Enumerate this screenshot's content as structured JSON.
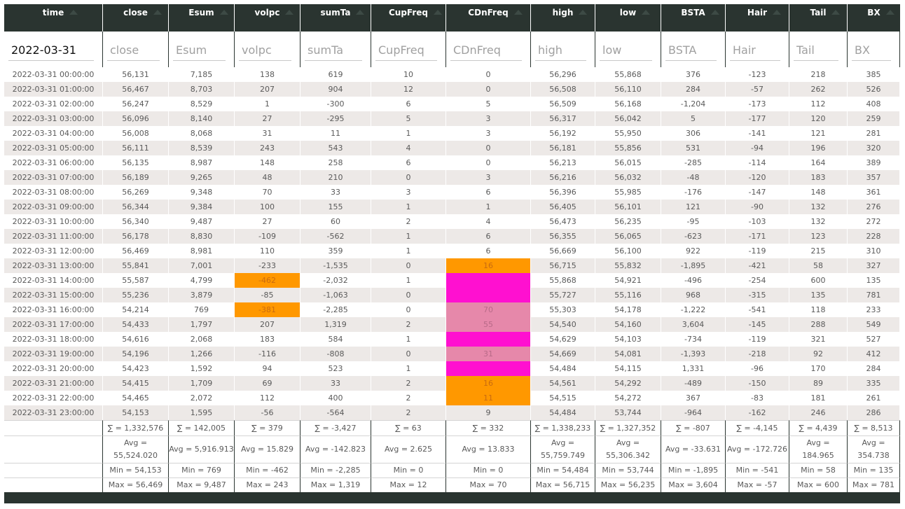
{
  "columns": [
    "time",
    "close",
    "Esum",
    "volpc",
    "sumTa",
    "CupFreq",
    "CDnFreq",
    "high",
    "low",
    "BSTA",
    "Hair",
    "Tail",
    "BX"
  ],
  "filters": {
    "time_value": "2022-03-31",
    "placeholders": [
      "close",
      "Esum",
      "volpc",
      "sumTa",
      "CupFreq",
      "CDnFreq",
      "high",
      "low",
      "BSTA",
      "Hair",
      "Tail",
      "BX"
    ]
  },
  "rows": [
    [
      "2022-03-31 00:00:00",
      "56,131",
      "7,185",
      "138",
      "619",
      "10",
      "0",
      "56,296",
      "55,868",
      "376",
      "-123",
      "218",
      "385"
    ],
    [
      "2022-03-31 01:00:00",
      "56,467",
      "8,703",
      "207",
      "904",
      "12",
      "0",
      "56,508",
      "56,110",
      "284",
      "-57",
      "262",
      "526"
    ],
    [
      "2022-03-31 02:00:00",
      "56,247",
      "8,529",
      "1",
      "-300",
      "6",
      "5",
      "56,509",
      "56,168",
      "-1,204",
      "-173",
      "112",
      "408"
    ],
    [
      "2022-03-31 03:00:00",
      "56,096",
      "8,140",
      "27",
      "-295",
      "5",
      "3",
      "56,317",
      "56,042",
      "5",
      "-177",
      "120",
      "259"
    ],
    [
      "2022-03-31 04:00:00",
      "56,008",
      "8,068",
      "31",
      "11",
      "1",
      "3",
      "56,192",
      "55,950",
      "306",
      "-141",
      "121",
      "281"
    ],
    [
      "2022-03-31 05:00:00",
      "56,111",
      "8,539",
      "243",
      "543",
      "4",
      "0",
      "56,181",
      "55,856",
      "531",
      "-94",
      "196",
      "320"
    ],
    [
      "2022-03-31 06:00:00",
      "56,135",
      "8,987",
      "148",
      "258",
      "6",
      "0",
      "56,213",
      "56,015",
      "-285",
      "-114",
      "164",
      "389"
    ],
    [
      "2022-03-31 07:00:00",
      "56,189",
      "9,265",
      "48",
      "210",
      "0",
      "3",
      "56,216",
      "56,032",
      "-48",
      "-120",
      "183",
      "357"
    ],
    [
      "2022-03-31 08:00:00",
      "56,269",
      "9,348",
      "70",
      "33",
      "3",
      "6",
      "56,396",
      "55,985",
      "-176",
      "-147",
      "148",
      "361"
    ],
    [
      "2022-03-31 09:00:00",
      "56,344",
      "9,384",
      "100",
      "155",
      "1",
      "1",
      "56,405",
      "56,101",
      "121",
      "-90",
      "132",
      "276"
    ],
    [
      "2022-03-31 10:00:00",
      "56,340",
      "9,487",
      "27",
      "60",
      "2",
      "4",
      "56,473",
      "56,235",
      "-95",
      "-103",
      "132",
      "272"
    ],
    [
      "2022-03-31 11:00:00",
      "56,178",
      "8,830",
      "-109",
      "-562",
      "1",
      "6",
      "56,355",
      "56,065",
      "-623",
      "-171",
      "123",
      "228"
    ],
    [
      "2022-03-31 12:00:00",
      "56,469",
      "8,981",
      "110",
      "359",
      "1",
      "6",
      "56,669",
      "56,100",
      "922",
      "-119",
      "215",
      "310"
    ],
    [
      "2022-03-31 13:00:00",
      "55,841",
      "7,001",
      "-233",
      "-1,535",
      "0",
      "16",
      "56,715",
      "55,832",
      "-1,895",
      "-421",
      "58",
      "327"
    ],
    [
      "2022-03-31 14:00:00",
      "55,587",
      "4,799",
      "-462",
      "-2,032",
      "1",
      "",
      "55,868",
      "54,921",
      "-496",
      "-254",
      "600",
      "135"
    ],
    [
      "2022-03-31 15:00:00",
      "55,236",
      "3,879",
      "-85",
      "-1,063",
      "0",
      "",
      "55,727",
      "55,116",
      "968",
      "-315",
      "135",
      "781"
    ],
    [
      "2022-03-31 16:00:00",
      "54,214",
      "769",
      "-381",
      "-2,285",
      "0",
      "70",
      "55,303",
      "54,178",
      "-1,222",
      "-541",
      "118",
      "233"
    ],
    [
      "2022-03-31 17:00:00",
      "54,433",
      "1,797",
      "207",
      "1,319",
      "2",
      "55",
      "54,540",
      "54,160",
      "3,604",
      "-145",
      "288",
      "549"
    ],
    [
      "2022-03-31 18:00:00",
      "54,616",
      "2,068",
      "183",
      "584",
      "1",
      "",
      "54,629",
      "54,103",
      "-734",
      "-119",
      "321",
      "527"
    ],
    [
      "2022-03-31 19:00:00",
      "54,196",
      "1,266",
      "-116",
      "-808",
      "0",
      "31",
      "54,669",
      "54,081",
      "-1,393",
      "-218",
      "92",
      "412"
    ],
    [
      "2022-03-31 20:00:00",
      "54,423",
      "1,592",
      "94",
      "523",
      "1",
      "",
      "54,484",
      "54,115",
      "1,331",
      "-96",
      "170",
      "284"
    ],
    [
      "2022-03-31 21:00:00",
      "54,415",
      "1,709",
      "69",
      "33",
      "2",
      "16",
      "54,561",
      "54,292",
      "-489",
      "-150",
      "89",
      "335"
    ],
    [
      "2022-03-31 22:00:00",
      "54,465",
      "2,072",
      "112",
      "400",
      "2",
      "11",
      "54,515",
      "54,272",
      "367",
      "-83",
      "181",
      "261"
    ],
    [
      "2022-03-31 23:00:00",
      "54,153",
      "1,595",
      "-56",
      "-564",
      "2",
      "9",
      "54,484",
      "53,744",
      "-964",
      "-162",
      "246",
      "286"
    ]
  ],
  "highlights": {
    "colors": {
      "orange": "#ff9800",
      "magenta": "#ff10d0",
      "pink": "#e688aa",
      "gray": "#bdbdbd"
    },
    "cells": [
      {
        "row": 13,
        "col": 4,
        "style": "gray"
      },
      {
        "row": 13,
        "col": 6,
        "style": "orange"
      },
      {
        "row": 14,
        "col": 3,
        "style": "orange"
      },
      {
        "row": 14,
        "col": 6,
        "style": "magenta"
      },
      {
        "row": 15,
        "col": 6,
        "style": "magenta"
      },
      {
        "row": 16,
        "col": 3,
        "style": "orange"
      },
      {
        "row": 16,
        "col": 6,
        "style": "pink"
      },
      {
        "row": 17,
        "col": 6,
        "style": "pink"
      },
      {
        "row": 18,
        "col": 6,
        "style": "magenta"
      },
      {
        "row": 19,
        "col": 6,
        "style": "pink"
      },
      {
        "row": 20,
        "col": 6,
        "style": "magenta"
      },
      {
        "row": 21,
        "col": 6,
        "style": "orange"
      },
      {
        "row": 22,
        "col": 6,
        "style": "orange"
      }
    ]
  },
  "summary": {
    "sum": [
      "",
      "∑ = 1,332,576",
      "∑ = 142,005",
      "∑ = 379",
      "∑ = -3,427",
      "∑ = 63",
      "∑ = 332",
      "∑ = 1,338,233",
      "∑ = 1,327,352",
      "∑ = -807",
      "∑ = -4,145",
      "∑ = 4,439",
      "∑ = 8,513"
    ],
    "avg": [
      "",
      "Avg = 55,524.020",
      "Avg = 5,916.913",
      "Avg = 15.829",
      "Avg = -142.823",
      "Avg = 2.625",
      "Avg = 13.833",
      "Avg = 55,759.749",
      "Avg = 55,306.342",
      "Avg = -33.631",
      "Avg = -172.726",
      "Avg = 184.965",
      "Avg = 354.738"
    ],
    "min": [
      "",
      "Min = 54,153",
      "Min = 769",
      "Min = -462",
      "Min = -2,285",
      "Min = 0",
      "Min = 0",
      "Min = 54,484",
      "Min = 53,744",
      "Min = -1,895",
      "Min = -541",
      "Min = 58",
      "Min = 135"
    ],
    "max": [
      "",
      "Max = 56,469",
      "Max = 9,487",
      "Max = 243",
      "Max = 1,319",
      "Max = 12",
      "Max = 70",
      "Max = 56,715",
      "Max = 56,235",
      "Max = 3,604",
      "Max = -57",
      "Max = 600",
      "Max = 781"
    ]
  }
}
